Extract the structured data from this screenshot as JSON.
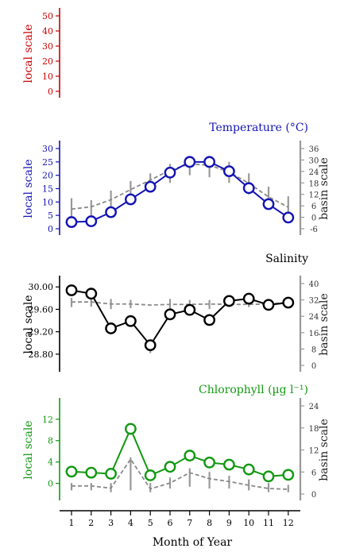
{
  "colors": {
    "red": "#cc0000",
    "blue": "#1414b4",
    "black": "#000000",
    "green": "#119911",
    "gray": "#999999",
    "grid_dash": "#8a8a8a"
  },
  "xaxis": {
    "label": "Month of Year",
    "ticks": [
      1,
      2,
      3,
      4,
      5,
      6,
      7,
      8,
      9,
      10,
      11,
      12
    ]
  },
  "chart_data": [
    {
      "type": "line",
      "title": "",
      "ylabel_left": "local scale",
      "ylim_left": [
        0,
        50
      ],
      "yticks_left": [
        0,
        10,
        20,
        30,
        40,
        50
      ],
      "color": "#cc0000",
      "series": []
    },
    {
      "type": "line",
      "title": "Temperature (°C)",
      "ylabel_left": "local scale",
      "ylabel_right": "basin scale",
      "ylim_left": [
        0,
        30
      ],
      "yticks_left": [
        0,
        5,
        10,
        15,
        20,
        25,
        30
      ],
      "ylim_right": [
        -6,
        36
      ],
      "yticks_right": [
        -6,
        0,
        6,
        12,
        18,
        24,
        30,
        36
      ],
      "color": "#1414b4",
      "x": [
        1,
        2,
        3,
        4,
        5,
        6,
        7,
        8,
        9,
        10,
        11,
        12
      ],
      "local": [
        2.5,
        2.8,
        6.2,
        11,
        15.7,
        21,
        25,
        25,
        21.5,
        15.2,
        9.2,
        4.2
      ],
      "basin": [
        4.3,
        5.5,
        9.2,
        14.5,
        19.5,
        24.7,
        27.9,
        27.3,
        23.7,
        17.8,
        10.7,
        5.3
      ],
      "basin_range": [
        [
          0,
          10
        ],
        [
          1,
          9
        ],
        [
          4,
          14
        ],
        [
          8,
          19
        ],
        [
          13,
          23
        ],
        [
          18,
          28
        ],
        [
          22,
          32
        ],
        [
          21,
          31
        ],
        [
          18,
          29
        ],
        [
          12,
          23
        ],
        [
          5,
          16
        ],
        [
          0,
          11
        ]
      ]
    },
    {
      "type": "line",
      "title": "Salinity",
      "ylabel_left": "local scale",
      "ylabel_right": "basin scale",
      "ylim_left": [
        28.6,
        30.06
      ],
      "yticks_left": [
        "28.80",
        "29.20",
        "29.60",
        "30.00"
      ],
      "ylim_right": [
        0,
        40
      ],
      "yticks_right": [
        0,
        8,
        16,
        24,
        32,
        40
      ],
      "color": "#000000",
      "x": [
        1,
        2,
        3,
        4,
        5,
        6,
        7,
        8,
        9,
        10,
        11,
        12
      ],
      "local": [
        29.94,
        29.88,
        29.26,
        29.39,
        28.96,
        29.51,
        29.59,
        29.41,
        29.75,
        29.79,
        29.68,
        29.72
      ],
      "basin": [
        31,
        31,
        30,
        30,
        29.5,
        29.8,
        29.8,
        30,
        29.8,
        29.8,
        30,
        30.8
      ],
      "basin_range": [
        [
          28.5,
          33
        ],
        [
          28.7,
          32.5
        ],
        [
          27.5,
          32.5
        ],
        [
          28,
          32
        ],
        [
          6,
          11
        ],
        [
          26.5,
          32.5
        ],
        [
          27,
          32
        ],
        [
          27.5,
          32
        ],
        [
          28.5,
          32.5
        ],
        [
          28.5,
          32
        ],
        [
          28,
          32
        ],
        [
          28.5,
          33
        ]
      ]
    },
    {
      "type": "line",
      "title": "Chlorophyll (µg l⁻¹)",
      "ylabel_left": "local scale",
      "ylabel_right": "basin scale",
      "ylim_left": [
        -2,
        14.5
      ],
      "yticks_left": [
        0,
        4,
        8,
        12
      ],
      "ylim_right": [
        0,
        24
      ],
      "yticks_right": [
        0,
        6,
        12,
        18,
        24
      ],
      "color": "#119911",
      "x": [
        1,
        2,
        3,
        4,
        5,
        6,
        7,
        8,
        9,
        10,
        11,
        12
      ],
      "local": [
        2.2,
        2.0,
        1.8,
        10.2,
        1.5,
        3.1,
        5.2,
        3.9,
        3.5,
        2.6,
        1.3,
        1.6
      ],
      "basin": [
        2.2,
        2.2,
        1.6,
        9.5,
        1.4,
        3.0,
        5.8,
        4.2,
        3.4,
        2.4,
        1.5,
        1.3
      ],
      "basin_range": [
        [
          1,
          3
        ],
        [
          1,
          3
        ],
        [
          0.5,
          3
        ],
        [
          1,
          10
        ],
        [
          0.5,
          3
        ],
        [
          1.5,
          4.5
        ],
        [
          2,
          7
        ],
        [
          1.5,
          6
        ],
        [
          1.5,
          5
        ],
        [
          1,
          4
        ],
        [
          0.5,
          3
        ],
        [
          0.5,
          2.5
        ]
      ]
    }
  ]
}
